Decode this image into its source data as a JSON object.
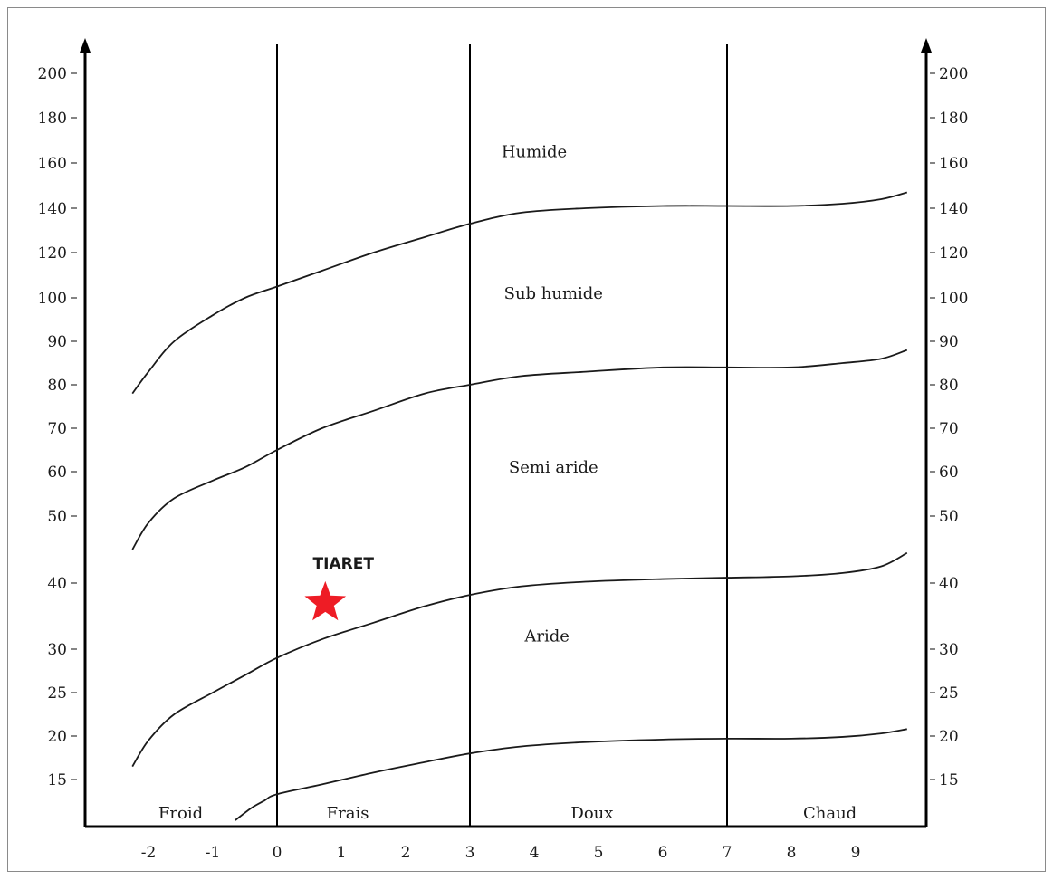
{
  "chart_data": {
    "type": "line",
    "x_ticks": [
      "-2",
      "-1",
      "0",
      "1",
      "2",
      "3",
      "4",
      "5",
      "6",
      "7",
      "8",
      "9"
    ],
    "x_tick_values": [
      -2,
      -1,
      0,
      1,
      2,
      3,
      4,
      5,
      6,
      7,
      8,
      9
    ],
    "y_ticks_left": [
      "200",
      "180",
      "160",
      "140",
      "120",
      "100",
      "90",
      "80",
      "70",
      "60",
      "50",
      "40",
      "30",
      "25",
      "20",
      "15"
    ],
    "y_ticks_right": [
      "200",
      "180",
      "160",
      "140",
      "120",
      "100",
      "90",
      "80",
      "70",
      "60",
      "50",
      "40",
      "30",
      "25",
      "20",
      "15"
    ],
    "y_tick_values": [
      200,
      180,
      160,
      140,
      120,
      100,
      90,
      80,
      70,
      60,
      50,
      40,
      30,
      25,
      20,
      15
    ],
    "xlim": [
      -2.7,
      9.8
    ],
    "ylim": [
      10,
      215
    ],
    "x_grid_lines": [
      0,
      3,
      7
    ],
    "thermal_zones": [
      {
        "label": "Froid",
        "x": -1.5
      },
      {
        "label": "Frais",
        "x": 1.1
      },
      {
        "label": "Doux",
        "x": 4.9
      },
      {
        "label": "Chaud",
        "x": 8.6
      }
    ],
    "bands": [
      {
        "label": "Humide",
        "x": 4.0,
        "y": 165
      },
      {
        "label": "Sub humide",
        "x": 4.3,
        "y": 102
      },
      {
        "label": "Semi aride",
        "x": 4.3,
        "y": 61
      },
      {
        "label": "Aride",
        "x": 4.2,
        "y": 32
      }
    ],
    "curves": [
      {
        "x": [
          -2.25,
          -2.0,
          -1.6,
          -1.0,
          -0.5,
          0,
          0.7,
          1.5,
          2.3,
          3.0,
          3.8,
          4.8,
          6.0,
          7.0,
          8.0,
          8.8,
          9.4,
          9.8
        ],
        "y": [
          78,
          83,
          90,
          96,
          100,
          105,
          112,
          120,
          127,
          133,
          138,
          140,
          141,
          141,
          141,
          142,
          144,
          147
        ]
      },
      {
        "x": [
          -2.25,
          -2.0,
          -1.6,
          -1.0,
          -0.5,
          0,
          0.7,
          1.5,
          2.3,
          3.0,
          3.8,
          4.8,
          6.0,
          7.0,
          8.0,
          8.8,
          9.4,
          9.8
        ],
        "y": [
          45,
          49,
          54,
          58,
          61,
          65,
          70,
          74,
          78,
          80,
          82,
          83,
          84,
          84,
          84,
          85,
          86,
          88
        ]
      },
      {
        "x": [
          -2.25,
          -2.0,
          -1.6,
          -1.0,
          -0.5,
          0,
          0.7,
          1.5,
          2.3,
          3.0,
          3.8,
          4.8,
          6.0,
          7.0,
          8.0,
          8.8,
          9.4,
          9.8
        ],
        "y": [
          16.5,
          19.5,
          22.5,
          25,
          27,
          29,
          31.5,
          34,
          36.5,
          38.2,
          39.5,
          40.2,
          40.6,
          40.8,
          41,
          41.5,
          42.5,
          44.5
        ]
      },
      {
        "x": [
          -0.65,
          -0.4,
          -0.2,
          0,
          0.7,
          1.5,
          2.3,
          3.0,
          3.8,
          4.8,
          6.0,
          7.0,
          8.0,
          8.8,
          9.4,
          9.8
        ],
        "y": [
          10,
          11.5,
          12.4,
          13.2,
          14.4,
          15.8,
          17.0,
          18.0,
          18.8,
          19.3,
          19.6,
          19.7,
          19.7,
          19.9,
          20.3,
          20.8
        ]
      }
    ],
    "point": {
      "label": "TIARET",
      "x": 0.75,
      "y": 37,
      "color": "#ee1c25"
    }
  }
}
